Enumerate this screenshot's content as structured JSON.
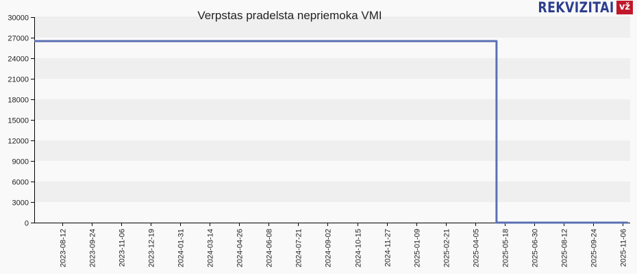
{
  "header": {
    "title": "Verpstas pradelsta nepriemoka VMI",
    "logo_text": "REKVIZITAI",
    "logo_badge": "vž"
  },
  "colors": {
    "line": "#5a6fb3",
    "band_dark": "#efefef",
    "band_light": "#f9f9f9",
    "axis": "#000000",
    "logo_blue": "#2d3e8f",
    "logo_red": "#c0182a"
  },
  "chart_data": {
    "type": "line",
    "title": "Verpstas pradelsta nepriemoka VMI",
    "xlabel": "",
    "ylabel": "",
    "ylim": [
      0,
      30000
    ],
    "yticks": [
      0,
      3000,
      6000,
      9000,
      12000,
      15000,
      18000,
      21000,
      24000,
      27000,
      30000
    ],
    "xticks": [
      "2023-08-12",
      "2023-09-24",
      "2023-11-06",
      "2023-12-19",
      "2024-01-31",
      "2024-03-14",
      "2024-04-26",
      "2024-06-08",
      "2024-07-21",
      "2024-09-02",
      "2024-10-15",
      "2024-11-27",
      "2025-01-09",
      "2025-02-21",
      "2025-04-05",
      "2025-05-18",
      "2025-06-30",
      "2025-08-12",
      "2025-09-24",
      "2025-11-06"
    ],
    "grid": "alternating horizontal bands",
    "legend": "none",
    "series": [
      {
        "name": "Verpstas pradelsta nepriemoka VMI",
        "step": true,
        "points": [
          {
            "x": "2023-07-01",
            "y": 26500
          },
          {
            "x": "2025-05-07",
            "y": 26500
          },
          {
            "x": "2025-05-07",
            "y": 0
          },
          {
            "x": "2025-11-15",
            "y": 0
          }
        ]
      }
    ]
  }
}
